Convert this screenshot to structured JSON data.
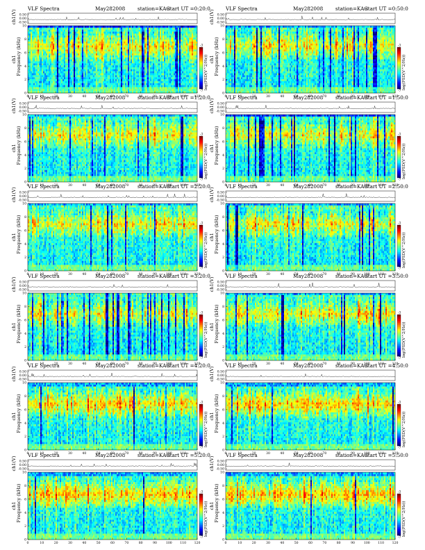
{
  "page": {
    "header_title": "VLF Spectra",
    "date": "May282008",
    "station": "station=KAG",
    "start_label": "start UT ="
  },
  "axes": {
    "xlabel": "Time (sec)",
    "ylabel": "Frequency (kHz)",
    "ch_label": "ch1",
    "ch_axis_label": "ch1(V)",
    "ch_ticks": [
      "0.50",
      "0.00",
      "-0.50"
    ],
    "y_ticks": [
      "0",
      "2",
      "4",
      "6",
      "8",
      "10"
    ],
    "x_ticks": [
      "0",
      "10",
      "20",
      "30",
      "40",
      "50",
      "60",
      "70",
      "80",
      "90",
      "100",
      "110",
      "120"
    ],
    "colorbar_label": "log(PSD(V^2/Hz))",
    "colorbar_ticks": [
      "-3",
      "-7"
    ]
  },
  "chart_data": [
    {
      "type": "heatmap",
      "start_ut": "0:20:0",
      "xlim": [
        0,
        120
      ],
      "ylim": [
        0,
        10
      ],
      "band_khz": [
        4.8,
        9.0
      ],
      "upper_limit_khz": 9.7,
      "intensity": 0.58,
      "dark_streaks": 0.32,
      "seed": 11
    },
    {
      "type": "heatmap",
      "start_ut": "0:50:0",
      "xlim": [
        0,
        120
      ],
      "ylim": [
        0,
        10
      ],
      "band_khz": [
        5.0,
        9.0
      ],
      "upper_limit_khz": 9.7,
      "intensity": 0.58,
      "dark_streaks": 0.3,
      "seed": 23
    },
    {
      "type": "heatmap",
      "start_ut": "1:20:0",
      "xlim": [
        0,
        120
      ],
      "ylim": [
        0,
        10
      ],
      "band_khz": [
        5.0,
        9.0
      ],
      "upper_limit_khz": 9.7,
      "intensity": 0.55,
      "dark_streaks": 0.22,
      "seed": 37
    },
    {
      "type": "heatmap",
      "start_ut": "1:50:0",
      "xlim": [
        0,
        120
      ],
      "ylim": [
        0,
        10
      ],
      "band_khz": [
        5.0,
        9.0
      ],
      "upper_limit_khz": 9.8,
      "intensity": 0.52,
      "dark_streaks": 0.4,
      "seed": 41
    },
    {
      "type": "heatmap",
      "start_ut": "2:20:0",
      "xlim": [
        0,
        120
      ],
      "ylim": [
        0,
        10
      ],
      "band_khz": [
        5.0,
        8.8
      ],
      "upper_limit_khz": 9.8,
      "intensity": 0.52,
      "dark_streaks": 0.12,
      "seed": 53
    },
    {
      "type": "heatmap",
      "start_ut": "2:50:0",
      "xlim": [
        0,
        120
      ],
      "ylim": [
        0,
        10
      ],
      "band_khz": [
        5.0,
        8.8
      ],
      "upper_limit_khz": 9.8,
      "intensity": 0.54,
      "dark_streaks": 0.15,
      "seed": 67
    },
    {
      "type": "heatmap",
      "start_ut": "3:20:0",
      "xlim": [
        0,
        120
      ],
      "ylim": [
        0,
        10
      ],
      "band_khz": [
        5.0,
        8.8
      ],
      "upper_limit_khz": 10.0,
      "intensity": 0.52,
      "dark_streaks": 0.45,
      "seed": 71
    },
    {
      "type": "heatmap",
      "start_ut": "3:50:0",
      "xlim": [
        0,
        120
      ],
      "ylim": [
        0,
        10
      ],
      "band_khz": [
        5.0,
        8.8
      ],
      "upper_limit_khz": 9.8,
      "intensity": 0.58,
      "dark_streaks": 0.12,
      "seed": 83
    },
    {
      "type": "heatmap",
      "start_ut": "4:20:0",
      "xlim": [
        0,
        120
      ],
      "ylim": [
        0,
        10
      ],
      "band_khz": [
        4.8,
        8.8
      ],
      "upper_limit_khz": 9.5,
      "intensity": 0.66,
      "dark_streaks": 0.08,
      "seed": 97
    },
    {
      "type": "heatmap",
      "start_ut": "4:50:0",
      "xlim": [
        0,
        120
      ],
      "ylim": [
        0,
        10
      ],
      "band_khz": [
        4.8,
        8.8
      ],
      "upper_limit_khz": 9.5,
      "intensity": 0.72,
      "dark_streaks": 0.08,
      "seed": 101
    },
    {
      "type": "heatmap",
      "start_ut": "5:20:0",
      "xlim": [
        0,
        120
      ],
      "ylim": [
        0,
        10
      ],
      "band_khz": [
        4.6,
        8.8
      ],
      "upper_limit_khz": 9.4,
      "intensity": 0.72,
      "dark_streaks": 0.06,
      "seed": 113
    },
    {
      "type": "heatmap",
      "start_ut": "5:50:0",
      "xlim": [
        0,
        120
      ],
      "ylim": [
        0,
        10
      ],
      "band_khz": [
        4.6,
        8.8
      ],
      "upper_limit_khz": 9.4,
      "intensity": 0.74,
      "dark_streaks": 0.06,
      "seed": 127
    }
  ]
}
